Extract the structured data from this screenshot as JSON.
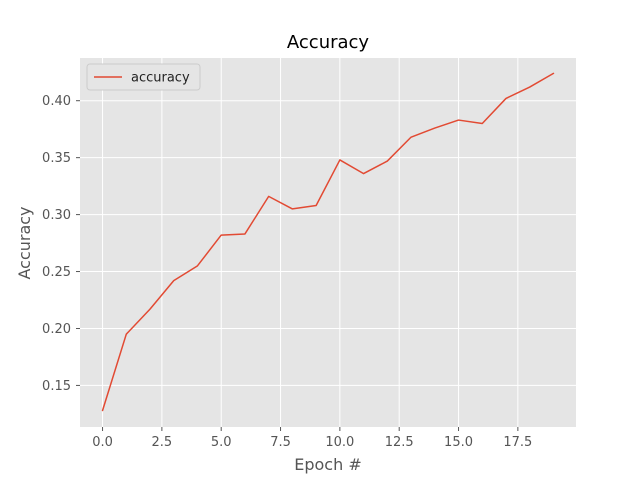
{
  "chart_data": {
    "type": "line",
    "title": "Accuracy",
    "xlabel": "Epoch #",
    "ylabel": "Accuracy",
    "xlim": [
      -0.95,
      19.95
    ],
    "ylim": [
      0.1135,
      0.4375
    ],
    "xticks": [
      0,
      2.5,
      5,
      7.5,
      10,
      12.5,
      15,
      17.5
    ],
    "xtick_labels": [
      "0.0",
      "2.5",
      "5.0",
      "7.5",
      "10.0",
      "12.5",
      "15.0",
      "17.5"
    ],
    "yticks": [
      0.15,
      0.2,
      0.25,
      0.3,
      0.35,
      0.4
    ],
    "ytick_labels": [
      "0.15",
      "0.20",
      "0.25",
      "0.30",
      "0.35",
      "0.40"
    ],
    "grid": true,
    "legend_position": "upper-left",
    "background": "#e5e5e5",
    "series": [
      {
        "name": "accuracy",
        "color": "#e24a33",
        "x": [
          0,
          1,
          2,
          3,
          4,
          5,
          6,
          7,
          8,
          9,
          10,
          11,
          12,
          13,
          14,
          15,
          16,
          17,
          18,
          19
        ],
        "values": [
          0.128,
          0.195,
          0.217,
          0.242,
          0.255,
          0.282,
          0.283,
          0.316,
          0.305,
          0.308,
          0.348,
          0.336,
          0.347,
          0.368,
          0.376,
          0.383,
          0.38,
          0.402,
          0.412,
          0.424
        ]
      }
    ]
  }
}
